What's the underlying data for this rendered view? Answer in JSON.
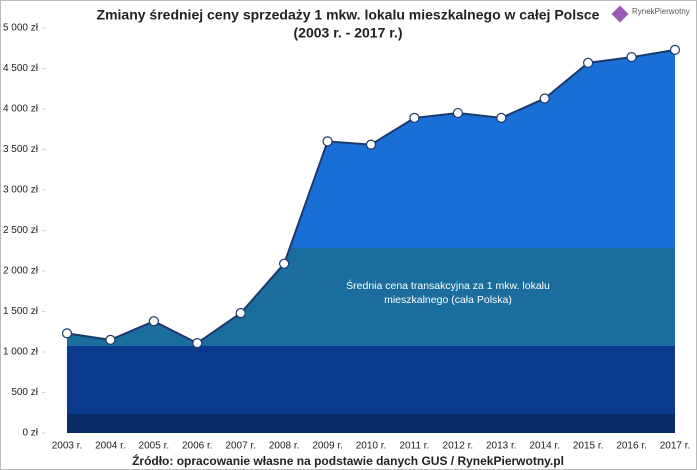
{
  "chart_data": {
    "type": "area",
    "title": "Zmiany średniej ceny sprzedaży 1 mkw. lokalu mieszkalnego w całej Polsce",
    "subtitle": "(2003 r. - 2017 r.)",
    "annotation": [
      "Średnia cena transakcyjna za 1 mkw. lokalu",
      "mieszkalnego (cała Polska)"
    ],
    "source": "Źródło: opracowanie własne na podstawie danych GUS / RynekPierwotny.pl",
    "logo": "RynekPierwotny",
    "categories": [
      "2003 r.",
      "2004 r.",
      "2005 r.",
      "2006 r.",
      "2007 r.",
      "2008 r.",
      "2009 r.",
      "2010 r.",
      "2011 r.",
      "2012 r.",
      "2013 r.",
      "2014 r.",
      "2015 r.",
      "2016 r.",
      "2017 r."
    ],
    "values": [
      1230,
      1150,
      1380,
      1110,
      1480,
      2090,
      3600,
      3560,
      3890,
      3950,
      3890,
      4130,
      4570,
      4640,
      4730
    ],
    "color": "#1b3a6b",
    "ylim": [
      0,
      5000
    ],
    "yticks": [
      {
        "value": 0,
        "label": "0 zł"
      },
      {
        "value": 500,
        "label": "500 zł"
      },
      {
        "value": 1000,
        "label": "1 000 zł"
      },
      {
        "value": 1500,
        "label": "1 500 zł"
      },
      {
        "value": 2000,
        "label": "2 000 zł"
      },
      {
        "value": 2500,
        "label": "2 500 zł"
      },
      {
        "value": 3000,
        "label": "3 000 zł"
      },
      {
        "value": 3500,
        "label": "3 500 zł"
      },
      {
        "value": 4000,
        "label": "4 000 zł"
      },
      {
        "value": 4500,
        "label": "4 500 zł"
      },
      {
        "value": 5000,
        "label": "5 000 zł"
      }
    ]
  }
}
